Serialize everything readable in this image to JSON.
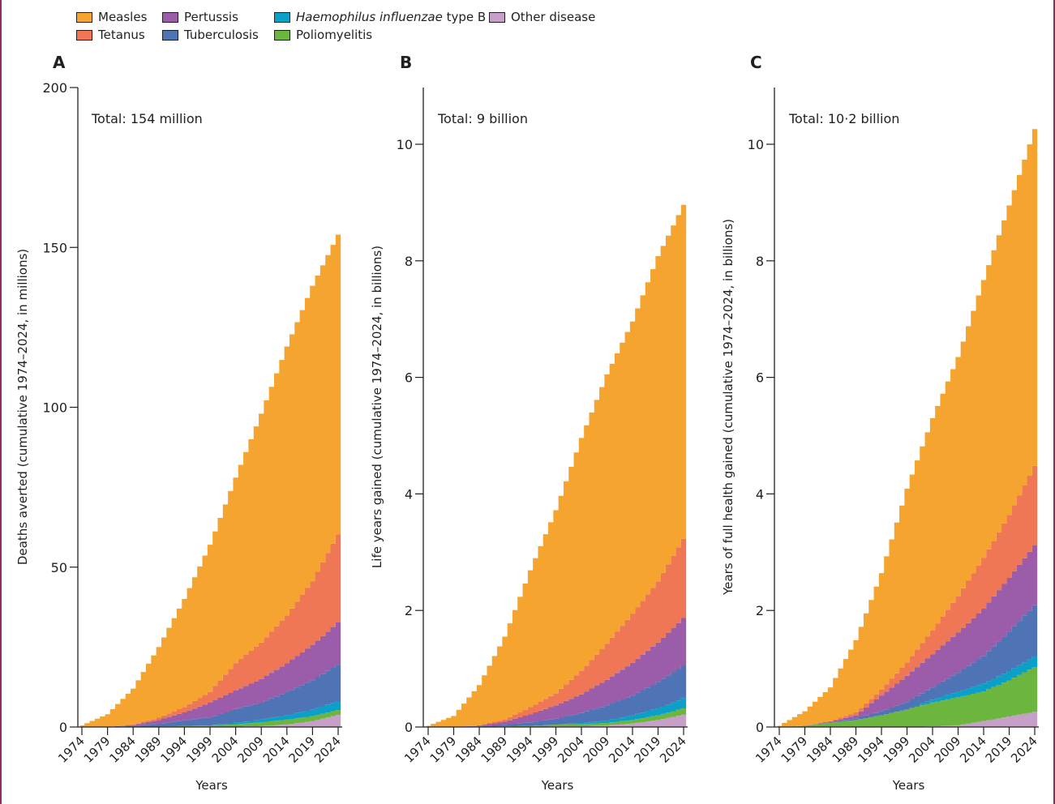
{
  "legend": [
    {
      "key": "measles",
      "label": "Measles",
      "italic_part": "",
      "color": "#F5A52F"
    },
    {
      "key": "tetanus",
      "label": "Tetanus",
      "italic_part": "",
      "color": "#EF7755"
    },
    {
      "key": "pertussis",
      "label": "Pertussis",
      "italic_part": "",
      "color": "#9B5CAA"
    },
    {
      "key": "tuberculosis",
      "label": "Tuberculosis",
      "italic_part": "",
      "color": "#4F74B5"
    },
    {
      "key": "hib",
      "label": " type B",
      "italic_part": "Haemophilus influenzae",
      "color": "#0AA0C8"
    },
    {
      "key": "polio",
      "label": "Poliomyelitis",
      "italic_part": "",
      "color": "#6CB53F"
    },
    {
      "key": "other",
      "label": "Other disease",
      "italic_part": "",
      "color": "#C6A0C8"
    }
  ],
  "chart_data": [
    {
      "type": "area",
      "panel": "A",
      "title": "Total: 154 million",
      "xlabel": "Years",
      "ylabel": "Deaths averted (cumulative 1974–2024, in millions)",
      "ylim": [
        0,
        200
      ],
      "yticks": [
        0,
        50,
        100,
        150,
        200
      ],
      "yticklabels": [
        "0",
        "50",
        "100",
        "150",
        "200"
      ],
      "xticks": [
        "1974",
        "1979",
        "1984",
        "1989",
        "1994",
        "1999",
        "2004",
        "2009",
        "2014",
        "2019",
        "2024"
      ],
      "x": [
        1974,
        1979,
        1984,
        1989,
        1994,
        1999,
        2004,
        2009,
        2014,
        2019,
        2024
      ],
      "stack_order": [
        "other",
        "polio",
        "hib",
        "tuberculosis",
        "pertussis",
        "tetanus",
        "measles"
      ],
      "series": [
        {
          "name": "Other disease",
          "key": "other",
          "values": [
            0,
            0,
            0,
            0,
            0.05,
            0.1,
            0.1,
            0.3,
            0.8,
            1.8,
            3.8
          ]
        },
        {
          "name": "Poliomyelitis",
          "key": "polio",
          "values": [
            0,
            0,
            0,
            0.1,
            0.3,
            0.4,
            0.7,
            1.2,
            1.5,
            1.6,
            1.5
          ]
        },
        {
          "name": "Haemophilus influenzae type B",
          "key": "hib",
          "values": [
            0,
            0,
            0,
            0,
            0,
            0,
            0.5,
            0.8,
            1.4,
            2.0,
            2.8
          ]
        },
        {
          "name": "Tuberculosis",
          "key": "tuberculosis",
          "values": [
            0,
            0,
            0.3,
            0.9,
            1.7,
            2.5,
            4.3,
            5.3,
            7.2,
            9.2,
            11.4
          ]
        },
        {
          "name": "Pertussis",
          "key": "pertussis",
          "values": [
            0,
            0,
            0.3,
            1.2,
            2.5,
            4.6,
            5.8,
            7.4,
            9.0,
            11.0,
            13.2
          ]
        },
        {
          "name": "Tetanus",
          "key": "tetanus",
          "values": [
            0,
            0,
            0.2,
            0.7,
            1.7,
            3.4,
            8.6,
            11.4,
            15.0,
            20.0,
            27.6
          ]
        },
        {
          "name": "Measles",
          "key": "measles",
          "values": [
            0.5,
            4.0,
            11.2,
            22.1,
            33.8,
            46.0,
            58.0,
            71.6,
            84.1,
            92.4,
            93.7
          ]
        }
      ],
      "totals": [
        0.5,
        4.0,
        12.0,
        25.0,
        40.0,
        57.0,
        78.0,
        98.0,
        119.0,
        138.0,
        154.0
      ]
    },
    {
      "type": "area",
      "panel": "B",
      "title": "Total: 9 billion",
      "xlabel": "Years",
      "ylabel": "Life years gained (cumulative 1974–2024, in billions)",
      "ylim": [
        0,
        11
      ],
      "yticks": [
        0,
        2,
        4,
        6,
        8,
        10
      ],
      "yticklabels": [
        "0",
        "2",
        "4",
        "6",
        "8",
        "10"
      ],
      "xticks": [
        "1974",
        "1979",
        "1984",
        "1989",
        "1994",
        "1999",
        "2004",
        "2009",
        "2014",
        "2019",
        "2024"
      ],
      "x": [
        1974,
        1979,
        1984,
        1989,
        1994,
        1999,
        2004,
        2009,
        2014,
        2019,
        2024
      ],
      "stack_order": [
        "other",
        "polio",
        "hib",
        "tuberculosis",
        "pertussis",
        "tetanus",
        "measles"
      ],
      "series": [
        {
          "name": "Other disease",
          "key": "other",
          "values": [
            0,
            0,
            0,
            0,
            0,
            0.01,
            0.01,
            0.03,
            0.06,
            0.12,
            0.21
          ]
        },
        {
          "name": "Poliomyelitis",
          "key": "polio",
          "values": [
            0,
            0,
            0,
            0.01,
            0.02,
            0.03,
            0.04,
            0.04,
            0.06,
            0.08,
            0.11
          ]
        },
        {
          "name": "Haemophilus influenzae type B",
          "key": "hib",
          "values": [
            0,
            0,
            0,
            0,
            0,
            0,
            0.02,
            0.04,
            0.08,
            0.12,
            0.17
          ]
        },
        {
          "name": "Tuberculosis",
          "key": "tuberculosis",
          "values": [
            0,
            0,
            0.01,
            0.03,
            0.06,
            0.1,
            0.17,
            0.26,
            0.34,
            0.45,
            0.56
          ]
        },
        {
          "name": "Pertussis",
          "key": "pertussis",
          "values": [
            0,
            0,
            0.01,
            0.05,
            0.14,
            0.23,
            0.32,
            0.44,
            0.56,
            0.68,
            0.82
          ]
        },
        {
          "name": "Tetanus",
          "key": "tetanus",
          "values": [
            0,
            0,
            0.01,
            0.04,
            0.12,
            0.21,
            0.4,
            0.62,
            0.84,
            1.05,
            1.36
          ]
        },
        {
          "name": "Measles",
          "key": "measles",
          "values": [
            0.02,
            0.19,
            0.69,
            1.42,
            2.35,
            3.14,
            4.0,
            4.62,
            5.02,
            5.58,
            5.73
          ]
        }
      ],
      "totals": [
        0.02,
        0.19,
        0.72,
        1.55,
        2.69,
        3.72,
        4.96,
        6.05,
        6.96,
        8.08,
        8.96
      ]
    },
    {
      "type": "area",
      "panel": "C",
      "title": "Total: 10·2 billion",
      "xlabel": "Years",
      "ylabel": "Years of full health gained (cumulative 1974–2024, in billions)",
      "ylim": [
        0,
        11
      ],
      "yticks": [
        0,
        2,
        4,
        6,
        8,
        10
      ],
      "yticklabels": [
        "0",
        "2",
        "4",
        "6",
        "8",
        "10"
      ],
      "xticks": [
        "1974",
        "1979",
        "1984",
        "1989",
        "1994",
        "1999",
        "2004",
        "2009",
        "2014",
        "2019",
        "2024"
      ],
      "x": [
        1974,
        1979,
        1984,
        1989,
        1994,
        1999,
        2004,
        2009,
        2014,
        2019,
        2024
      ],
      "stack_order": [
        "other",
        "polio",
        "hib",
        "tuberculosis",
        "pertussis",
        "tetanus",
        "measles"
      ],
      "series": [
        {
          "name": "Other disease",
          "key": "other",
          "values": [
            0,
            0,
            0,
            0,
            0,
            0,
            0.01,
            0.03,
            0.1,
            0.18,
            0.26
          ]
        },
        {
          "name": "Poliomyelitis",
          "key": "polio",
          "values": [
            0,
            0.02,
            0.07,
            0.12,
            0.2,
            0.3,
            0.41,
            0.48,
            0.51,
            0.62,
            0.77
          ]
        },
        {
          "name": "Haemophilus influenzae type B",
          "key": "hib",
          "values": [
            0,
            0,
            0,
            0,
            0,
            0,
            0.05,
            0.09,
            0.13,
            0.16,
            0.18
          ]
        },
        {
          "name": "Tuberculosis",
          "key": "tuberculosis",
          "values": [
            0,
            0,
            0.01,
            0.03,
            0.07,
            0.13,
            0.21,
            0.33,
            0.48,
            0.68,
            0.88
          ]
        },
        {
          "name": "Pertussis",
          "key": "pertussis",
          "values": [
            0,
            0,
            0.01,
            0.05,
            0.27,
            0.45,
            0.57,
            0.69,
            0.81,
            0.92,
            1.03
          ]
        },
        {
          "name": "Tetanus",
          "key": "tetanus",
          "values": [
            0,
            0,
            0.01,
            0.05,
            0.1,
            0.23,
            0.41,
            0.63,
            0.87,
            1.08,
            1.36
          ]
        },
        {
          "name": "Measles",
          "key": "measles",
          "values": [
            0.02,
            0.25,
            0.58,
            1.24,
            2.0,
            2.98,
            3.64,
            4.1,
            4.77,
            5.31,
            5.78
          ]
        }
      ],
      "totals": [
        0.02,
        0.27,
        0.68,
        1.49,
        2.64,
        4.09,
        5.3,
        6.35,
        7.67,
        8.95,
        10.26
      ]
    }
  ]
}
